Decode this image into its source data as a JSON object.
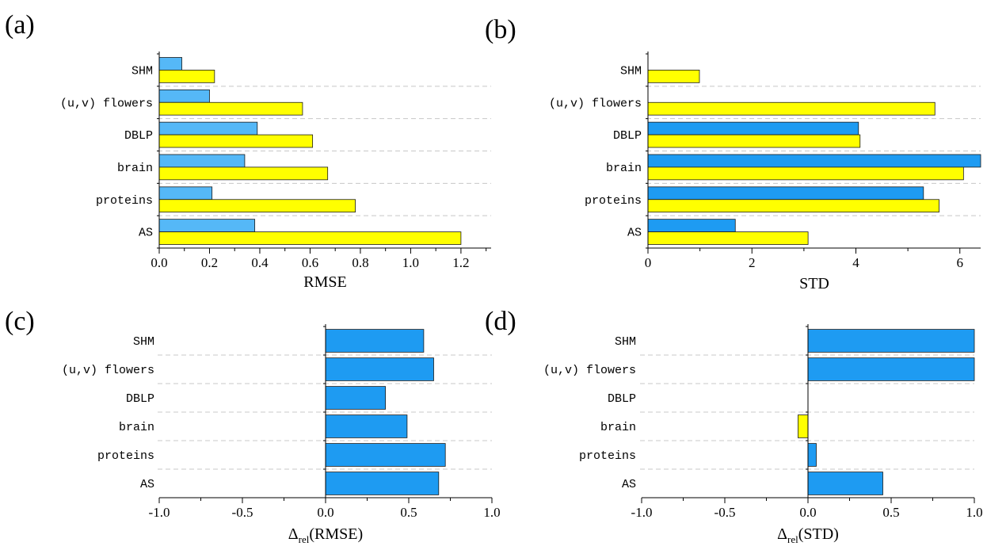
{
  "colors": {
    "blue_dark": "#1e9bf2",
    "blue_light": "#55b8f7",
    "yellow": "#ffff00",
    "grid": "#c8c8c8"
  },
  "chart_data": [
    {
      "panel": "(a)",
      "type": "bar",
      "orientation": "horizontal",
      "categories": [
        "SHM",
        "(u,v) flowers",
        "DBLP",
        "brain",
        "proteins",
        "AS"
      ],
      "series": [
        {
          "color": "#55b8f7",
          "values": [
            0.09,
            0.2,
            0.39,
            0.34,
            0.21,
            0.38
          ]
        },
        {
          "color": "#ffff00",
          "values": [
            0.22,
            0.57,
            0.61,
            0.67,
            0.78,
            1.2
          ]
        }
      ],
      "xlim": [
        0,
        1.32
      ],
      "xticks": [
        0.0,
        0.2,
        0.4,
        0.6,
        0.8,
        1.0,
        1.2
      ],
      "xticklabels": [
        "0.0",
        "0.2",
        "0.4",
        "0.6",
        "0.8",
        "1.0",
        "1.2"
      ],
      "xlabel": "RMSE",
      "grid": "dashed separators between categories"
    },
    {
      "panel": "(b)",
      "type": "bar",
      "orientation": "horizontal",
      "categories": [
        "SHM",
        "(u,v) flowers",
        "DBLP",
        "brain",
        "proteins",
        "AS"
      ],
      "series": [
        {
          "color": "#1e9bf2",
          "values": [
            0,
            0,
            4.05,
            6.4,
            5.3,
            1.68
          ]
        },
        {
          "color": "#ffff00",
          "values": [
            0.99,
            5.52,
            4.08,
            6.07,
            5.6,
            3.08
          ]
        }
      ],
      "xlim": [
        0,
        6.4
      ],
      "xticks": [
        0,
        2,
        4,
        6
      ],
      "xticklabels": [
        "0",
        "2",
        "4",
        "6"
      ],
      "xlabel": "STD",
      "grid": "dashed separators between categories"
    },
    {
      "panel": "(c)",
      "type": "bar",
      "orientation": "horizontal",
      "categories": [
        "SHM",
        "(u,v) flowers",
        "DBLP",
        "brain",
        "proteins",
        "AS"
      ],
      "series": [
        {
          "color_positive": "#1e9bf2",
          "color_negative": "#ffff00",
          "values": [
            0.59,
            0.65,
            0.36,
            0.49,
            0.72,
            0.68
          ]
        }
      ],
      "xlim": [
        -1.0,
        1.0
      ],
      "xticks": [
        -1.0,
        -0.5,
        0.0,
        0.5,
        1.0
      ],
      "xticklabels": [
        "-1.0",
        "-0.5",
        "0.0",
        "0.5",
        "1.0"
      ],
      "xlabel_main": "Δ",
      "xlabel_sub": "rel",
      "xlabel_rest": "(RMSE)",
      "grid": "dashed separators between categories"
    },
    {
      "panel": "(d)",
      "type": "bar",
      "orientation": "horizontal",
      "categories": [
        "SHM",
        "(u,v) flowers",
        "DBLP",
        "brain",
        "proteins",
        "AS"
      ],
      "series": [
        {
          "color_positive": "#1e9bf2",
          "color_negative": "#ffff00",
          "values": [
            1.0,
            1.0,
            0.0,
            -0.06,
            0.05,
            0.45
          ]
        }
      ],
      "xlim": [
        -1.0,
        1.0
      ],
      "xticks": [
        -1.0,
        -0.5,
        0.0,
        0.5,
        1.0
      ],
      "xticklabels": [
        "-1.0",
        "-0.5",
        "0.0",
        "0.5",
        "1.0"
      ],
      "xlabel_main": "Δ",
      "xlabel_sub": "rel",
      "xlabel_rest": "(STD)",
      "grid": "dashed separators between categories"
    }
  ]
}
